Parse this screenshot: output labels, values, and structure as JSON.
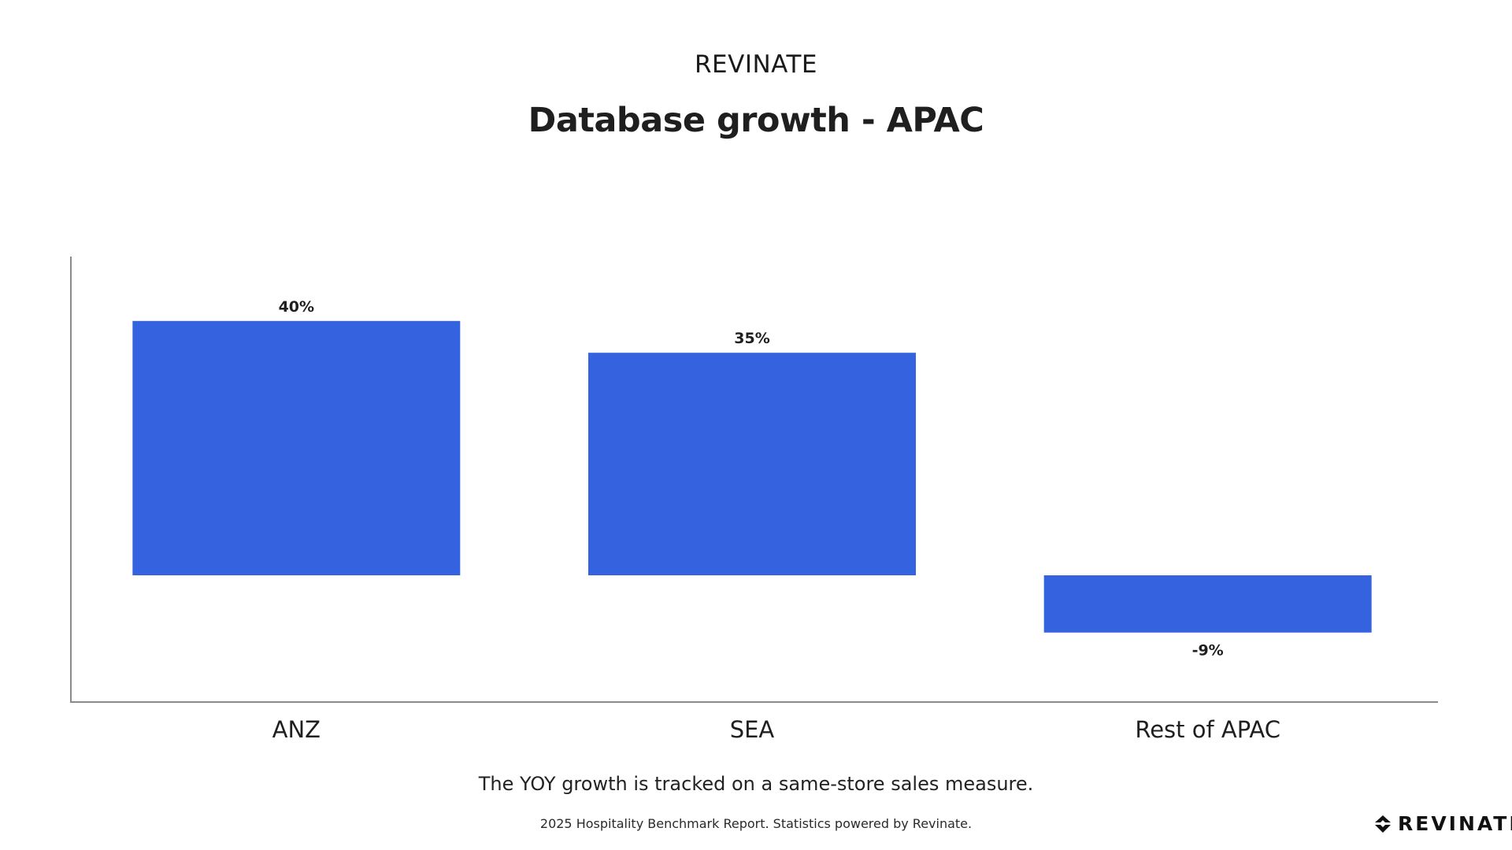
{
  "header": {
    "brand": "REVINATE",
    "title": "Database growth - APAC"
  },
  "chart_data": {
    "type": "bar",
    "title": "Database growth - APAC",
    "categories": [
      "ANZ",
      "SEA",
      "Rest of APAC"
    ],
    "values": [
      40,
      35,
      -9
    ],
    "data_labels": [
      "40%",
      "35%",
      "-9%"
    ],
    "unit": "%",
    "ylim": [
      -20,
      50
    ],
    "grid": false,
    "legend": "none",
    "bar_color": "#3563DF"
  },
  "footer": {
    "note": "The YOY growth is tracked on a same-store sales measure.",
    "credit": "2025 Hospitality Benchmark Report. Statistics powered by Revinate.",
    "logo_text": "REVINATE",
    "logo_icon": "revinate-logo-icon"
  },
  "colors": {
    "bar": "#3563DF",
    "axis": "#8a8a8a",
    "text": "#1a1a1a"
  }
}
